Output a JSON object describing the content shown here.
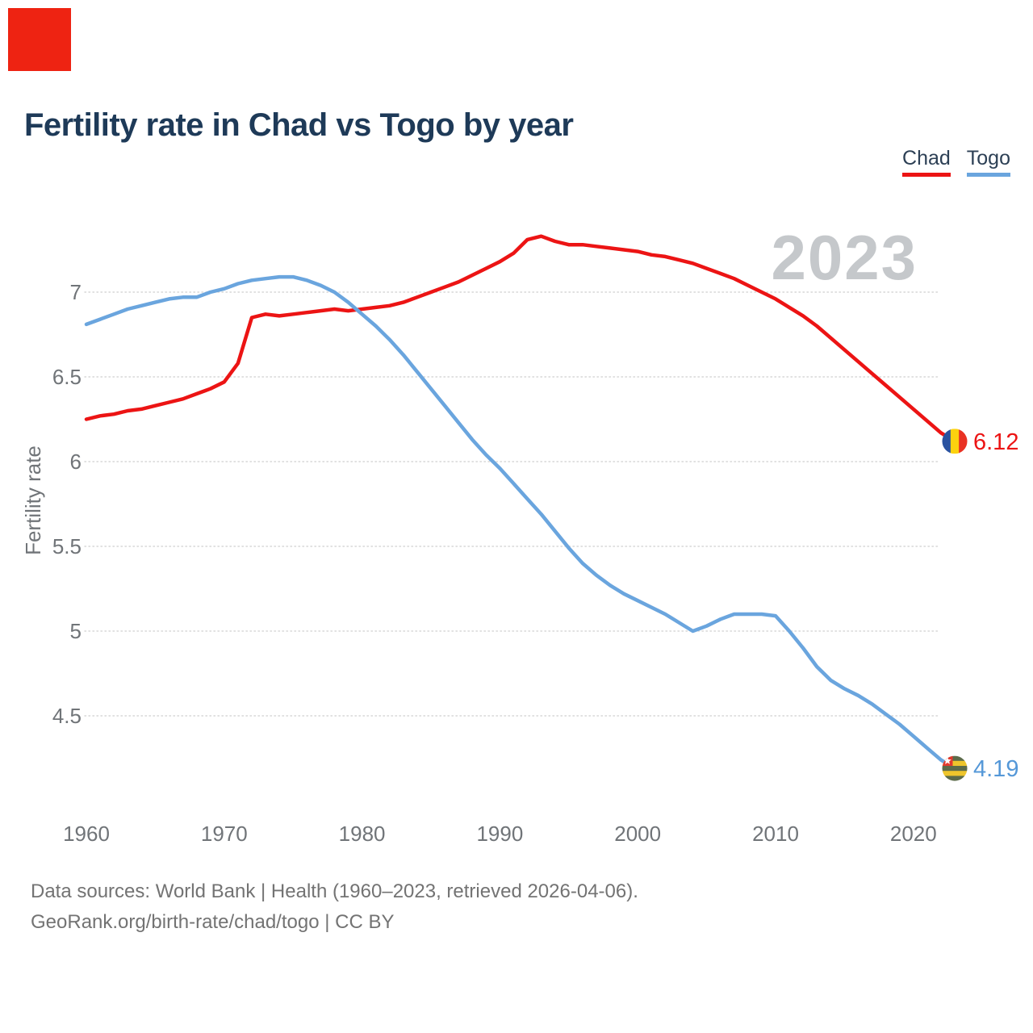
{
  "marker": {
    "color": "#ee2312"
  },
  "legend": {
    "items": [
      {
        "label": "Chad",
        "color": "#ec1414"
      },
      {
        "label": "Togo",
        "color": "#6aa5de"
      }
    ]
  },
  "watermark": "2023",
  "footer": {
    "line1": "Data sources: World Bank | Health (1960–2023, retrieved 2026-04-06).",
    "line2": "GeoRank.org/birth-rate/chad/togo | CC BY"
  },
  "flags": {
    "chad": {
      "blue": "#2a52a0",
      "yellow": "#fcd20f",
      "red": "#e93223"
    },
    "togo": {
      "green": "#5c6b4a",
      "yellow": "#eec52c",
      "red": "#e23a2e",
      "star": "#ffffff"
    }
  },
  "chart_data": {
    "type": "line",
    "title": "Fertility rate in Chad vs Togo by year",
    "xlabel": "",
    "ylabel": "Fertility rate",
    "x_range": [
      1960,
      2023
    ],
    "x_step": 1,
    "x_ticks": [
      1960,
      1970,
      1980,
      1990,
      2000,
      2010,
      2020
    ],
    "y_ticks": [
      4.5,
      5,
      5.5,
      6,
      6.5,
      7
    ],
    "ylim": [
      4.0,
      7.45
    ],
    "grid": true,
    "legend_position": "top-right",
    "series": [
      {
        "name": "Chad",
        "color": "#ec1414",
        "end_label": "6.12",
        "end_value": 6.12,
        "values": [
          6.25,
          6.27,
          6.28,
          6.3,
          6.31,
          6.33,
          6.35,
          6.37,
          6.4,
          6.43,
          6.47,
          6.58,
          6.85,
          6.87,
          6.86,
          6.87,
          6.88,
          6.89,
          6.9,
          6.89,
          6.9,
          6.91,
          6.92,
          6.94,
          6.97,
          7.0,
          7.03,
          7.06,
          7.1,
          7.14,
          7.18,
          7.23,
          7.31,
          7.33,
          7.3,
          7.28,
          7.28,
          7.27,
          7.26,
          7.25,
          7.24,
          7.22,
          7.21,
          7.19,
          7.17,
          7.14,
          7.11,
          7.08,
          7.04,
          7.0,
          6.96,
          6.91,
          6.86,
          6.8,
          6.73,
          6.66,
          6.59,
          6.52,
          6.45,
          6.38,
          6.31,
          6.24,
          6.17,
          6.12
        ]
      },
      {
        "name": "Togo",
        "color": "#6aa5de",
        "end_label": "4.19",
        "end_value": 4.19,
        "values": [
          6.81,
          6.84,
          6.87,
          6.9,
          6.92,
          6.94,
          6.96,
          6.97,
          6.97,
          7.0,
          7.02,
          7.05,
          7.07,
          7.08,
          7.09,
          7.09,
          7.07,
          7.04,
          7.0,
          6.94,
          6.87,
          6.8,
          6.72,
          6.63,
          6.53,
          6.43,
          6.33,
          6.23,
          6.13,
          6.04,
          5.96,
          5.87,
          5.78,
          5.69,
          5.59,
          5.49,
          5.4,
          5.33,
          5.27,
          5.22,
          5.18,
          5.14,
          5.1,
          5.05,
          5.0,
          5.03,
          5.07,
          5.1,
          5.1,
          5.1,
          5.09,
          5.0,
          4.9,
          4.79,
          4.71,
          4.66,
          4.62,
          4.57,
          4.51,
          4.45,
          4.38,
          4.31,
          4.24,
          4.19
        ]
      }
    ]
  }
}
